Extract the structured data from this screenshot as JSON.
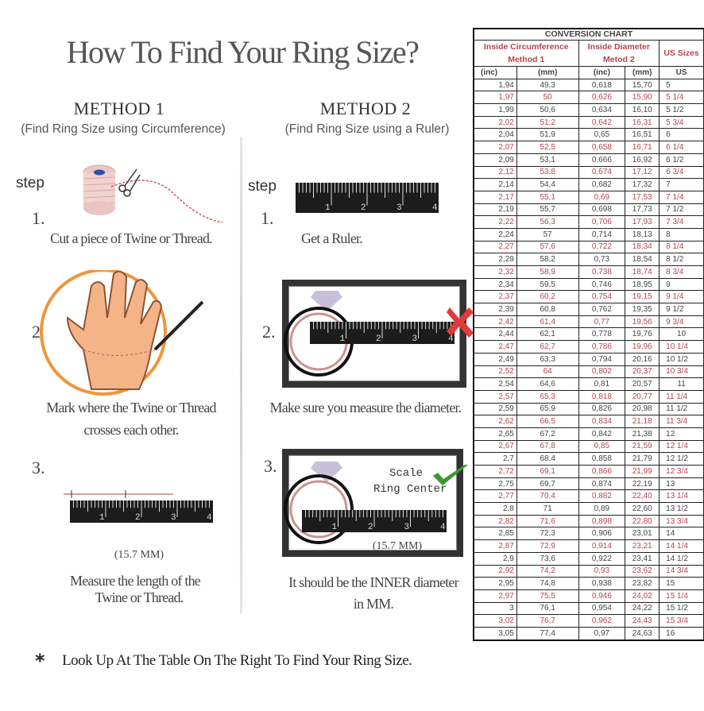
{
  "title": "How To Find Your Ring Size?",
  "method1": {
    "heading": "METHOD 1",
    "subtitle": "(Find Ring Size using Circumference)",
    "step_label": "step",
    "steps": [
      {
        "number": "1.",
        "caption_lines": [
          "Cut a piece of  Twine or Thread."
        ]
      },
      {
        "number": "2.",
        "caption_lines": [
          "Mark where the Twine or Thread",
          "crosses each other."
        ]
      },
      {
        "number": "3.",
        "caption_lines": [
          "Measure the length of the",
          "Twine or Thread."
        ],
        "measurement": "(15.7 MM)"
      }
    ]
  },
  "method2": {
    "heading": "METHOD 2",
    "subtitle": "(Find Ring Size using a Ruler)",
    "step_label": "step",
    "steps": [
      {
        "number": "1.",
        "caption_lines": [
          "Get a Ruler."
        ]
      },
      {
        "number": "2.",
        "caption_lines": [
          "Make sure you measure the diameter."
        ],
        "mark": "wrong-x"
      },
      {
        "number": "3.",
        "caption_lines": [
          "It should be the INNER diameter",
          "in MM."
        ],
        "scale_text": [
          "Scale",
          "Ring Center"
        ],
        "measurement": "(15.7 MM)",
        "mark": "correct-check"
      }
    ]
  },
  "ruler": {
    "labels": [
      "1",
      "2",
      "3",
      "4"
    ]
  },
  "footer": {
    "bullet": "*",
    "text": "Look Up At The Table On The Right To Find Your Ring Size."
  },
  "colors": {
    "accent_red": "#b6444c",
    "orange_circle": "#f0953a",
    "check_green": "#3a9a2e",
    "x_red": "#e03a3a"
  },
  "chart_data": {
    "type": "table",
    "title": "CONVERSION CHART",
    "group_headers": [
      {
        "label_lines": [
          "Inside Circumference",
          "Method 1"
        ]
      },
      {
        "label_lines": [
          "Inside Diameter",
          "Metod 2"
        ]
      },
      {
        "label_lines": [
          "US Sizes"
        ]
      }
    ],
    "columns": [
      "(inc)",
      "(mm)",
      "(inc)",
      "(mm)",
      "US"
    ],
    "rows": [
      [
        "1,94",
        "49,3",
        "0,618",
        "15,70",
        "5"
      ],
      [
        "1,97",
        "50",
        "0,626",
        "15,90",
        "5 1/4"
      ],
      [
        "1,99",
        "50,6",
        "0,634",
        "16,10",
        "5 1/2"
      ],
      [
        "2,02",
        "51,2",
        "0,642",
        "16,31",
        "5 3/4"
      ],
      [
        "2,04",
        "51,9",
        "0,65",
        "16,51",
        "6"
      ],
      [
        "2,07",
        "52,5",
        "0,658",
        "16,71",
        "6 1/4"
      ],
      [
        "2,09",
        "53,1",
        "0,666",
        "16,92",
        "6 1/2"
      ],
      [
        "2,12",
        "53,8",
        "0,674",
        "17,12",
        "6 3/4"
      ],
      [
        "2,14",
        "54,4",
        "0,682",
        "17,32",
        "7"
      ],
      [
        "2,17",
        "55,1",
        "0,69",
        "17,53",
        "7 1/4"
      ],
      [
        "2,19",
        "55,7",
        "0,698",
        "17,73",
        "7 1/2"
      ],
      [
        "2,22",
        "56,3",
        "0,706",
        "17,93",
        "7 3/4"
      ],
      [
        "2,24",
        "57",
        "0,714",
        "18,13",
        "8"
      ],
      [
        "2,27",
        "57,6",
        "0,722",
        "18,34",
        "8 1/4"
      ],
      [
        "2,29",
        "58,2",
        "0,73",
        "18,54",
        "8 1/2"
      ],
      [
        "2,32",
        "58,9",
        "0,738",
        "18,74",
        "8 3/4"
      ],
      [
        "2,34",
        "59,5",
        "0,746",
        "18,95",
        "9"
      ],
      [
        "2,37",
        "60,2",
        "0,754",
        "19,15",
        "9 1/4"
      ],
      [
        "2,39",
        "60,8",
        "0,762",
        "19,35",
        "9 1/2"
      ],
      [
        "2,42",
        "61,4",
        "0,77",
        "19,56",
        "9 3/4"
      ],
      [
        "2,44",
        "62,1",
        "0,778",
        "19,76",
        "10"
      ],
      [
        "2,47",
        "62,7",
        "0,786",
        "19,96",
        "10 1/4"
      ],
      [
        "2,49",
        "63,3",
        "0,794",
        "20,16",
        "10 1/2"
      ],
      [
        "2,52",
        "64",
        "0,802",
        "20,37",
        "10 3/4"
      ],
      [
        "2,54",
        "64,6",
        "0,81",
        "20,57",
        "11"
      ],
      [
        "2,57",
        "65,3",
        "0,818",
        "20,77",
        "11 1/4"
      ],
      [
        "2,59",
        "65,9",
        "0,826",
        "20,98",
        "11 1/2"
      ],
      [
        "2,62",
        "66,5",
        "0,834",
        "21,18",
        "11 3/4"
      ],
      [
        "2,65",
        "67,2",
        "0,842",
        "21,38",
        "12"
      ],
      [
        "2,67",
        "67,8",
        "0,85",
        "21,59",
        "12 1/4"
      ],
      [
        "2,7",
        "68,4",
        "0,858",
        "21,79",
        "12 1/2"
      ],
      [
        "2,72",
        "69,1",
        "0,866",
        "21,99",
        "12 3/4"
      ],
      [
        "2,75",
        "69,7",
        "0,874",
        "22,19",
        "13"
      ],
      [
        "2,77",
        "70,4",
        "0,882",
        "22,40",
        "13 1/4"
      ],
      [
        "2,8",
        "71",
        "0,89",
        "22,60",
        "13 1/2"
      ],
      [
        "2,82",
        "71,6",
        "0,898",
        "22,80",
        "13 3/4"
      ],
      [
        "2,85",
        "72,3",
        "0,906",
        "23,01",
        "14"
      ],
      [
        "2,87",
        "72,9",
        "0,914",
        "23,21",
        "14 1/4"
      ],
      [
        "2,9",
        "73,6",
        "0,922",
        "23,41",
        "14 1/2"
      ],
      [
        "2,92",
        "74,2",
        "0,93",
        "23,62",
        "14 3/4"
      ],
      [
        "2,95",
        "74,8",
        "0,938",
        "23,82",
        "15"
      ],
      [
        "2,97",
        "75,5",
        "0,946",
        "24,02",
        "15 1/4"
      ],
      [
        "3",
        "76,1",
        "0,954",
        "24,22",
        "15 1/2"
      ],
      [
        "3,02",
        "76,7",
        "0,962",
        "24,43",
        "15 3/4"
      ],
      [
        "3,05",
        "77,4",
        "0,97",
        "24,63",
        "16"
      ]
    ],
    "alternate_row_color": "#b6444c"
  }
}
